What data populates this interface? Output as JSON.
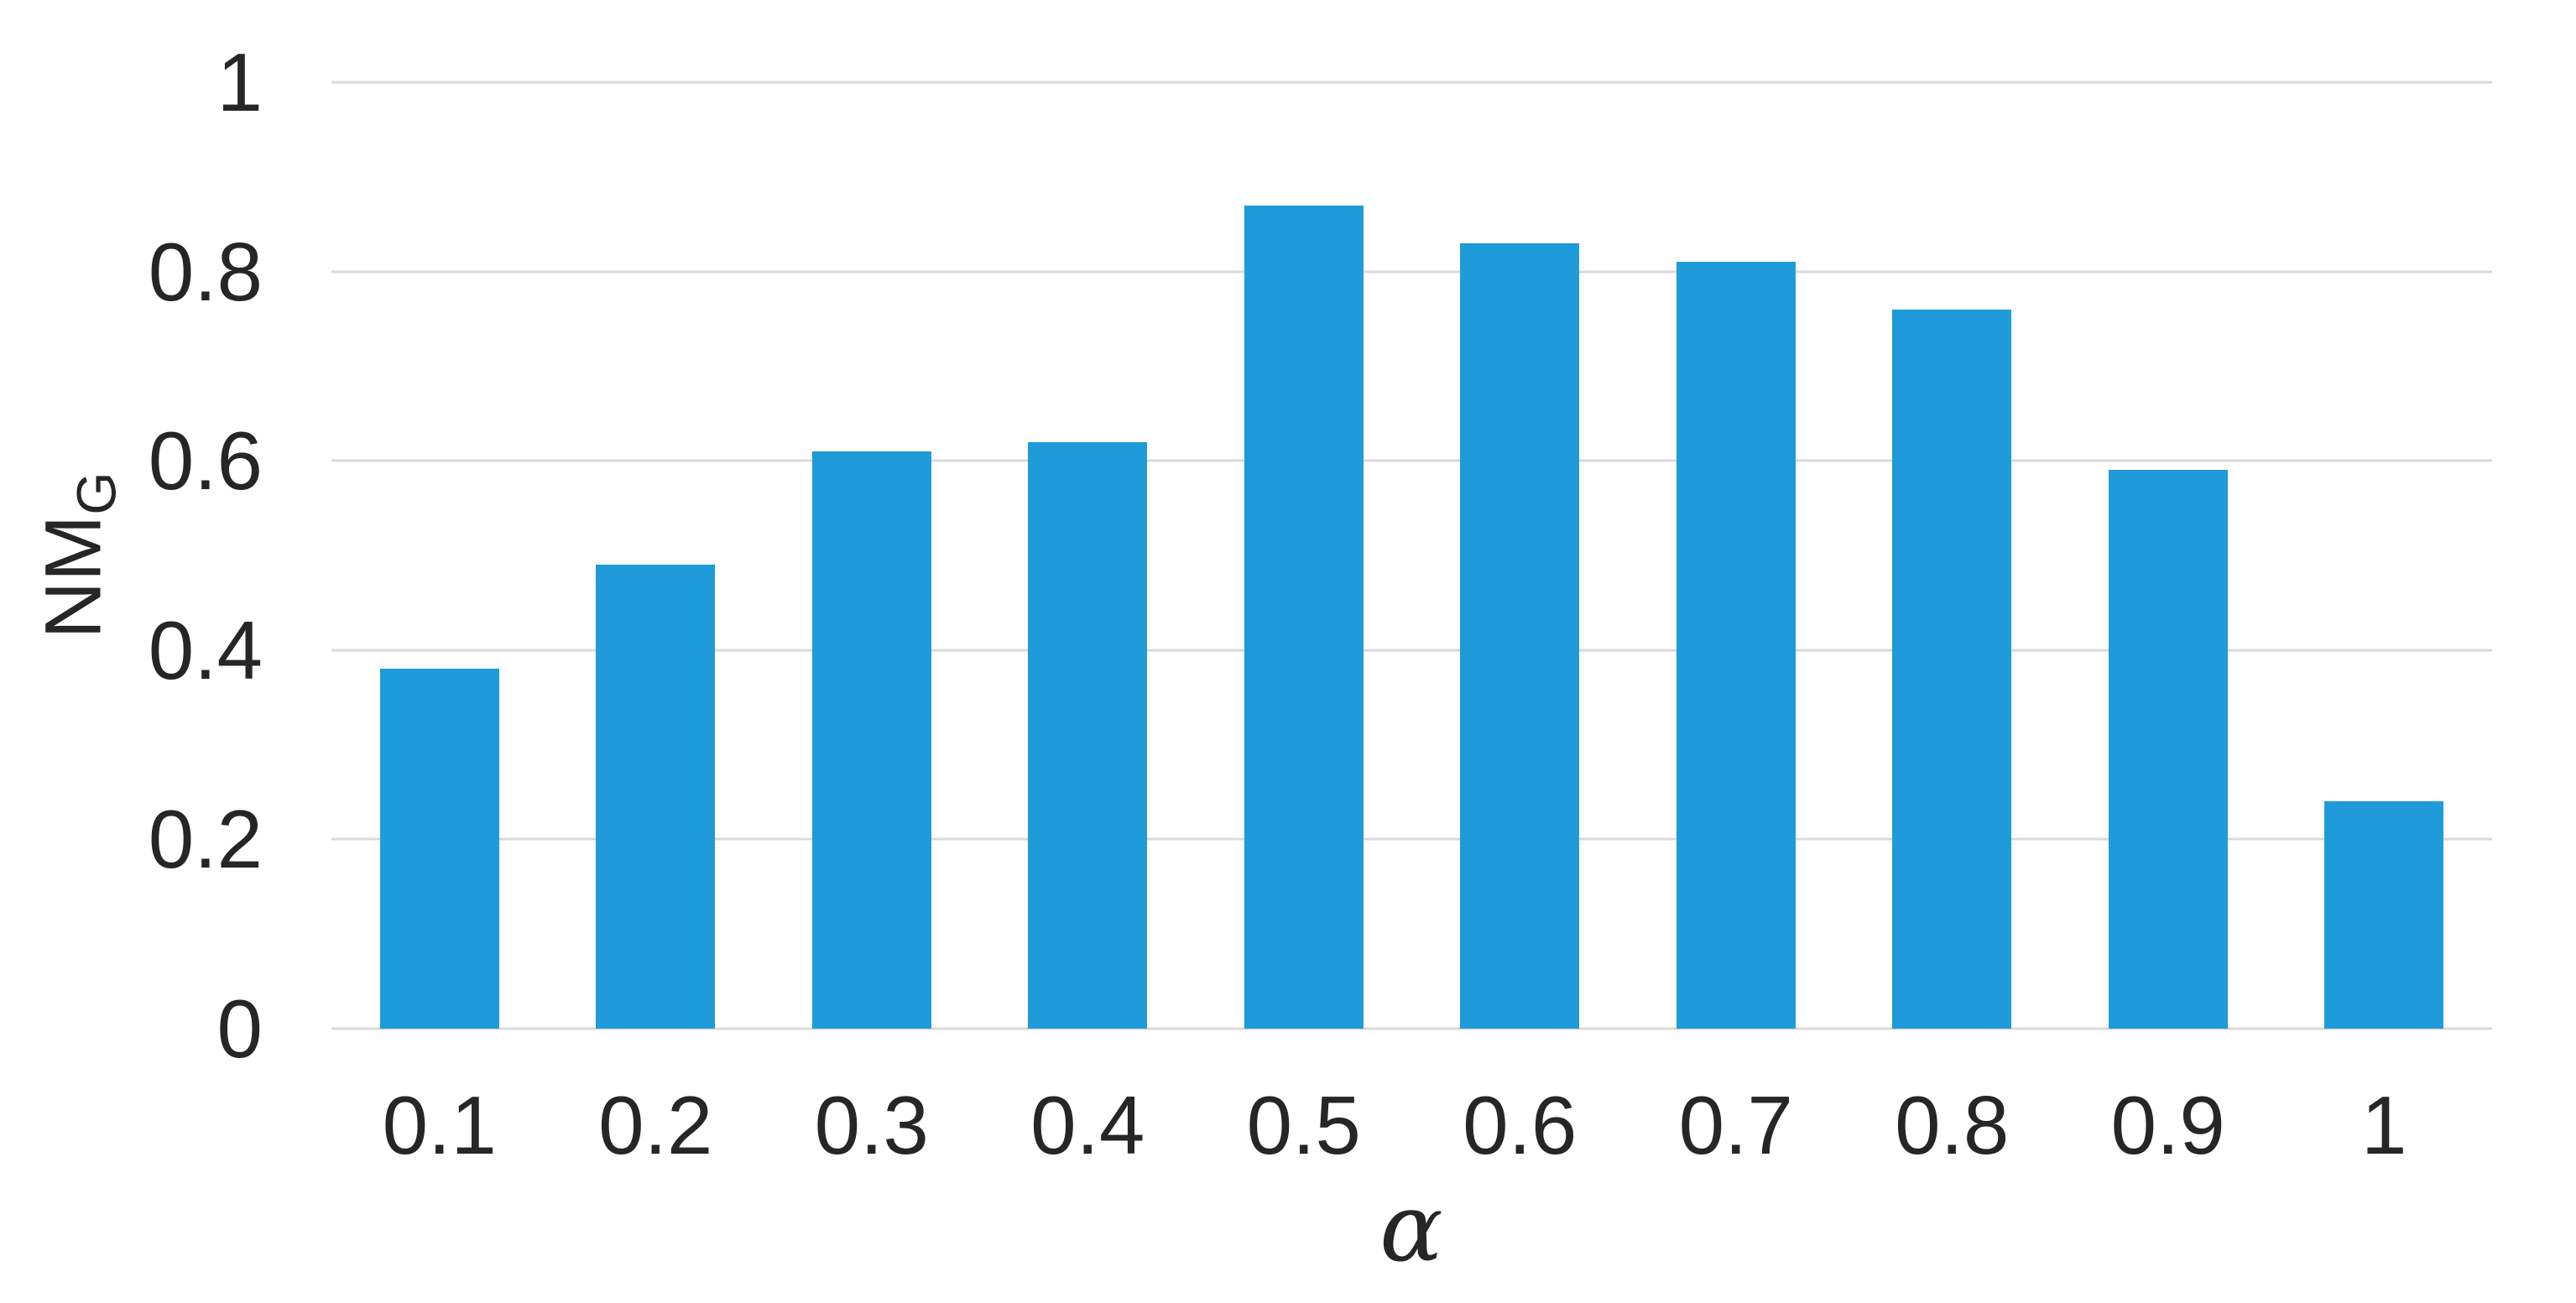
{
  "chart_data": {
    "type": "bar",
    "title": "",
    "xlabel": "α",
    "ylabel_main": "NM",
    "ylabel_sub": "G",
    "categories": [
      "0.1",
      "0.2",
      "0.3",
      "0.4",
      "0.5",
      "0.6",
      "0.7",
      "0.8",
      "0.9",
      "1"
    ],
    "values": [
      0.38,
      0.49,
      0.61,
      0.62,
      0.87,
      0.83,
      0.81,
      0.76,
      0.59,
      0.24
    ],
    "ylim": [
      0,
      1
    ],
    "yticks": [
      {
        "value": 1,
        "label": "1"
      },
      {
        "value": 0.8,
        "label": "0.8"
      },
      {
        "value": 0.6,
        "label": "0.6"
      },
      {
        "value": 0.4,
        "label": "0.4"
      },
      {
        "value": 0.2,
        "label": "0.2"
      },
      {
        "value": 0,
        "label": "0"
      }
    ],
    "grid": true,
    "legend": "none",
    "colors": {
      "bar": "#1e9bd8",
      "gridline": "#d9d9d9",
      "text": "#262626"
    }
  }
}
